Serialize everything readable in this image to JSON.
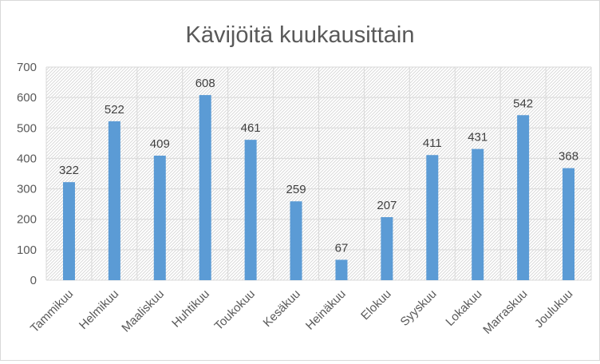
{
  "chart_data": {
    "type": "bar",
    "title": "Kävijöitä kuukausittain",
    "xlabel": "",
    "ylabel": "",
    "categories": [
      "Tammikuu",
      "Helmikuu",
      "Maaliskuu",
      "Huhtikuu",
      "Toukokuu",
      "Kesäkuu",
      "Heinäkuu",
      "Elokuu",
      "Syyskuu",
      "Lokakuu",
      "Marraskuu",
      "Joulukuu"
    ],
    "values": [
      322,
      522,
      409,
      608,
      461,
      259,
      67,
      207,
      411,
      431,
      542,
      368
    ],
    "ylim": [
      0,
      700
    ],
    "yticks": [
      0,
      100,
      200,
      300,
      400,
      500,
      600,
      700
    ],
    "grid": true,
    "legend": "none",
    "data_labels": true,
    "colors": {
      "bar": "#5b9bd5",
      "gridline": "#d9d9d9",
      "text": "#595959",
      "hatch": "#d4d4d4"
    }
  }
}
